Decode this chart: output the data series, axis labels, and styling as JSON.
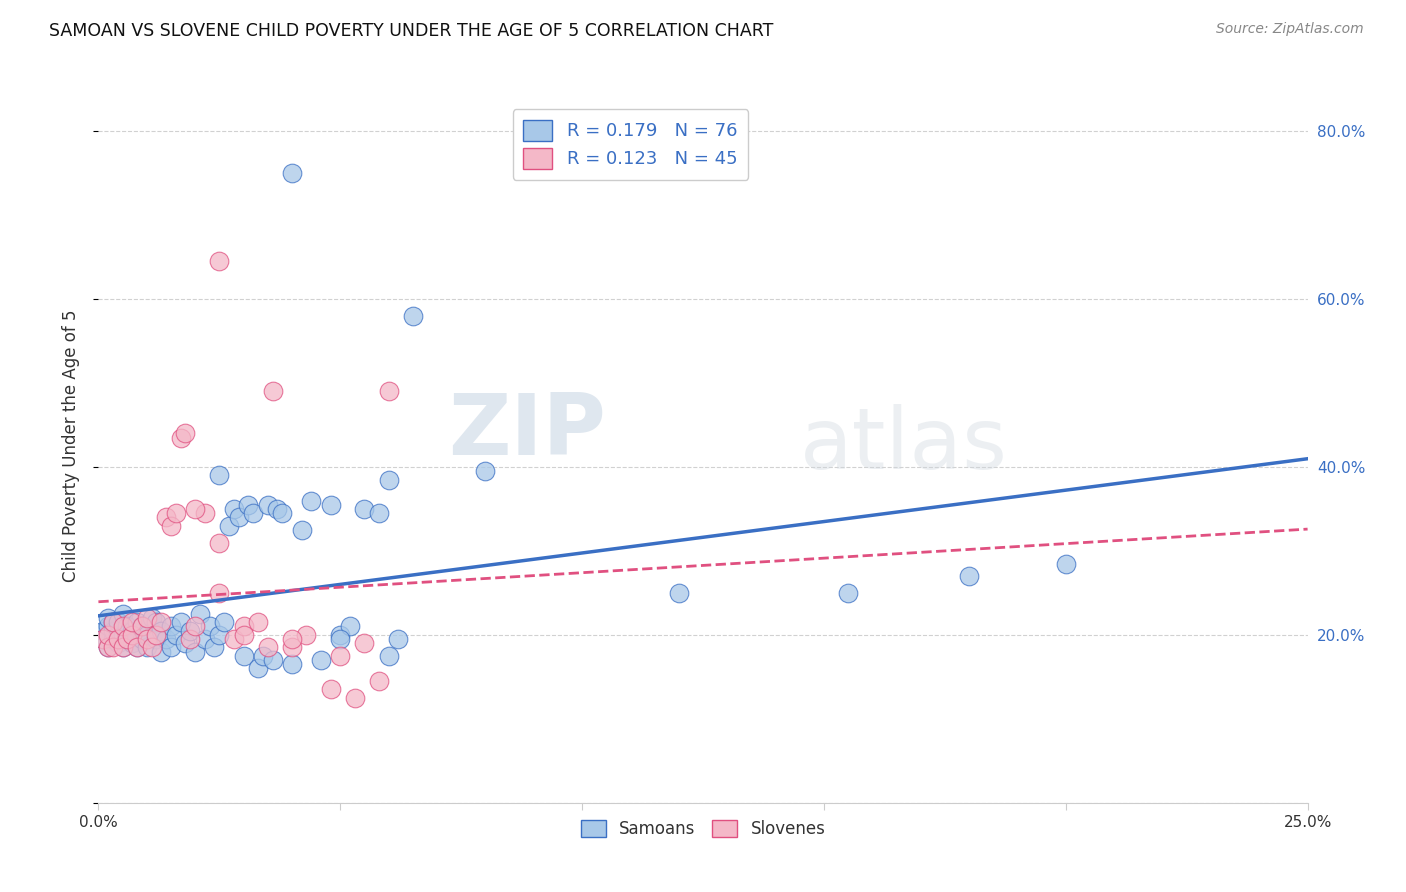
{
  "title": "SAMOAN VS SLOVENE CHILD POVERTY UNDER THE AGE OF 5 CORRELATION CHART",
  "source": "Source: ZipAtlas.com",
  "ylabel": "Child Poverty Under the Age of 5",
  "x_min": 0.0,
  "x_max": 0.25,
  "y_min": 0.0,
  "y_max": 0.85,
  "x_ticks": [
    0.0,
    0.05,
    0.1,
    0.15,
    0.2,
    0.25
  ],
  "x_tick_labels": [
    "0.0%",
    "",
    "",
    "",
    "",
    "25.0%"
  ],
  "y_ticks": [
    0.0,
    0.2,
    0.4,
    0.6,
    0.8
  ],
  "y_tick_labels": [
    "",
    "20.0%",
    "40.0%",
    "60.0%",
    "80.0%"
  ],
  "color_samoan": "#A8C8E8",
  "color_slovene": "#F4B8C8",
  "color_samoan_line": "#3A6FC4",
  "color_slovene_line": "#E05080",
  "watermark_zip": "ZIP",
  "watermark_atlas": "atlas",
  "grid_color": "#CCCCCC",
  "samoans_x": [
    0.001,
    0.001,
    0.002,
    0.002,
    0.002,
    0.003,
    0.003,
    0.003,
    0.004,
    0.004,
    0.004,
    0.005,
    0.005,
    0.005,
    0.006,
    0.006,
    0.007,
    0.007,
    0.008,
    0.008,
    0.009,
    0.009,
    0.01,
    0.01,
    0.011,
    0.012,
    0.012,
    0.013,
    0.013,
    0.014,
    0.015,
    0.015,
    0.016,
    0.017,
    0.018,
    0.019,
    0.02,
    0.021,
    0.022,
    0.023,
    0.024,
    0.025,
    0.026,
    0.027,
    0.028,
    0.029,
    0.03,
    0.031,
    0.032,
    0.033,
    0.034,
    0.035,
    0.036,
    0.037,
    0.038,
    0.04,
    0.042,
    0.044,
    0.046,
    0.048,
    0.05,
    0.052,
    0.055,
    0.058,
    0.06,
    0.062,
    0.065,
    0.08,
    0.06,
    0.025,
    0.12,
    0.155,
    0.18,
    0.2,
    0.05,
    0.04
  ],
  "samoans_y": [
    0.205,
    0.195,
    0.21,
    0.185,
    0.22,
    0.195,
    0.205,
    0.215,
    0.19,
    0.2,
    0.215,
    0.185,
    0.2,
    0.225,
    0.195,
    0.21,
    0.19,
    0.205,
    0.185,
    0.215,
    0.195,
    0.21,
    0.185,
    0.2,
    0.22,
    0.195,
    0.215,
    0.18,
    0.205,
    0.195,
    0.21,
    0.185,
    0.2,
    0.215,
    0.19,
    0.205,
    0.18,
    0.225,
    0.195,
    0.21,
    0.185,
    0.2,
    0.215,
    0.33,
    0.35,
    0.34,
    0.175,
    0.355,
    0.345,
    0.16,
    0.175,
    0.355,
    0.17,
    0.35,
    0.345,
    0.165,
    0.325,
    0.36,
    0.17,
    0.355,
    0.2,
    0.21,
    0.35,
    0.345,
    0.175,
    0.195,
    0.58,
    0.395,
    0.385,
    0.39,
    0.25,
    0.25,
    0.27,
    0.285,
    0.195,
    0.75
  ],
  "slovenes_x": [
    0.001,
    0.002,
    0.002,
    0.003,
    0.003,
    0.004,
    0.005,
    0.005,
    0.006,
    0.007,
    0.007,
    0.008,
    0.009,
    0.01,
    0.01,
    0.011,
    0.012,
    0.013,
    0.014,
    0.015,
    0.016,
    0.017,
    0.018,
    0.019,
    0.02,
    0.022,
    0.025,
    0.028,
    0.03,
    0.033,
    0.036,
    0.04,
    0.043,
    0.048,
    0.053,
    0.058,
    0.02,
    0.025,
    0.03,
    0.035,
    0.04,
    0.025,
    0.05,
    0.055,
    0.06
  ],
  "slovenes_y": [
    0.195,
    0.185,
    0.2,
    0.185,
    0.215,
    0.195,
    0.185,
    0.21,
    0.195,
    0.2,
    0.215,
    0.185,
    0.21,
    0.195,
    0.22,
    0.185,
    0.2,
    0.215,
    0.34,
    0.33,
    0.345,
    0.435,
    0.44,
    0.195,
    0.21,
    0.345,
    0.31,
    0.195,
    0.21,
    0.215,
    0.49,
    0.185,
    0.2,
    0.135,
    0.125,
    0.145,
    0.35,
    0.25,
    0.2,
    0.185,
    0.195,
    0.645,
    0.175,
    0.19,
    0.49
  ]
}
